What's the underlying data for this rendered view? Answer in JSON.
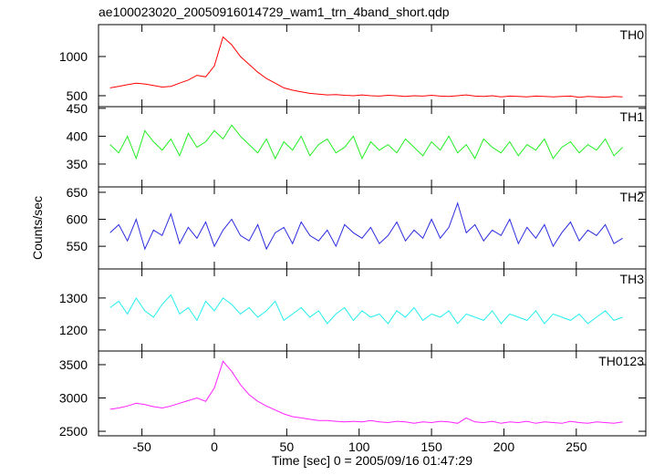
{
  "chart_data": [
    {
      "type": "line",
      "title": "ae100023020_20050916014729_wam1_trn_4band_short.qdp",
      "x": [
        -72,
        -66,
        -60,
        -54,
        -48,
        -42,
        -36,
        -30,
        -24,
        -18,
        -12,
        -6,
        0,
        6,
        12,
        18,
        24,
        30,
        36,
        42,
        48,
        54,
        60,
        66,
        72,
        78,
        84,
        90,
        96,
        102,
        108,
        114,
        120,
        126,
        132,
        138,
        144,
        150,
        156,
        162,
        168,
        174,
        180,
        186,
        192,
        198,
        204,
        210,
        216,
        222,
        228,
        234,
        240,
        246,
        252,
        258,
        264,
        270,
        276,
        282
      ],
      "xlim": [
        -80,
        298
      ],
      "xticks": [
        -50,
        0,
        50,
        100,
        150,
        200,
        250
      ],
      "ylim": [
        360,
        1407
      ],
      "yticks": [
        500,
        1000
      ],
      "series": [
        {
          "name": "TH0",
          "color": "#ff0000",
          "values": [
            600,
            620,
            640,
            660,
            650,
            630,
            610,
            620,
            660,
            700,
            760,
            740,
            880,
            1250,
            1150,
            1000,
            900,
            800,
            720,
            660,
            600,
            570,
            550,
            530,
            520,
            510,
            515,
            505,
            500,
            510,
            500,
            495,
            505,
            500,
            490,
            500,
            495,
            505,
            495,
            490,
            500,
            510,
            495,
            490,
            500,
            485,
            495,
            490,
            485,
            495,
            490,
            485,
            490,
            495,
            480,
            490,
            485,
            480,
            490,
            485
          ]
        }
      ]
    },
    {
      "type": "line",
      "x": [
        -72,
        -66,
        -60,
        -54,
        -48,
        -42,
        -36,
        -30,
        -24,
        -18,
        -12,
        -6,
        0,
        6,
        12,
        18,
        24,
        30,
        36,
        42,
        48,
        54,
        60,
        66,
        72,
        78,
        84,
        90,
        96,
        102,
        108,
        114,
        120,
        126,
        132,
        138,
        144,
        150,
        156,
        162,
        168,
        174,
        180,
        186,
        192,
        198,
        204,
        210,
        216,
        222,
        228,
        234,
        240,
        246,
        252,
        258,
        264,
        270,
        276,
        282
      ],
      "xlim": [
        -80,
        298
      ],
      "xticks": [
        -50,
        0,
        50,
        100,
        150,
        200,
        250
      ],
      "ylim": [
        309,
        453
      ],
      "yticks": [
        350,
        400,
        450
      ],
      "series": [
        {
          "name": "TH1",
          "color": "#22ee22",
          "values": [
            385,
            370,
            400,
            360,
            410,
            390,
            375,
            395,
            365,
            405,
            380,
            390,
            410,
            395,
            420,
            400,
            385,
            370,
            395,
            360,
            390,
            375,
            400,
            365,
            385,
            395,
            370,
            380,
            400,
            360,
            390,
            375,
            385,
            370,
            395,
            380,
            365,
            390,
            375,
            400,
            370,
            385,
            360,
            395,
            380,
            370,
            390,
            365,
            385,
            375,
            395,
            360,
            380,
            390,
            370,
            385,
            375,
            395,
            365,
            380
          ]
        }
      ]
    },
    {
      "type": "line",
      "ylabel": "Counts/sec",
      "x": [
        -72,
        -66,
        -60,
        -54,
        -48,
        -42,
        -36,
        -30,
        -24,
        -18,
        -12,
        -6,
        0,
        6,
        12,
        18,
        24,
        30,
        36,
        42,
        48,
        54,
        60,
        66,
        72,
        78,
        84,
        90,
        96,
        102,
        108,
        114,
        120,
        126,
        132,
        138,
        144,
        150,
        156,
        162,
        168,
        174,
        180,
        186,
        192,
        198,
        204,
        210,
        216,
        222,
        228,
        234,
        240,
        246,
        252,
        258,
        264,
        270,
        276,
        282
      ],
      "xlim": [
        -80,
        298
      ],
      "xticks": [
        -50,
        0,
        50,
        100,
        150,
        200,
        250
      ],
      "ylim": [
        508,
        660
      ],
      "yticks": [
        550,
        600,
        650
      ],
      "series": [
        {
          "name": "TH2",
          "color": "#2a2ae0",
          "values": [
            575,
            590,
            560,
            600,
            545,
            580,
            570,
            610,
            555,
            585,
            565,
            595,
            550,
            580,
            600,
            570,
            560,
            590,
            545,
            575,
            585,
            555,
            595,
            570,
            560,
            580,
            550,
            590,
            575,
            565,
            585,
            555,
            570,
            595,
            560,
            580,
            565,
            600,
            565,
            585,
            630,
            575,
            590,
            560,
            580,
            570,
            600,
            555,
            585,
            565,
            590,
            550,
            575,
            595,
            560,
            580,
            570,
            590,
            555,
            565
          ]
        }
      ]
    },
    {
      "type": "line",
      "x": [
        -72,
        -66,
        -60,
        -54,
        -48,
        -42,
        -36,
        -30,
        -24,
        -18,
        -12,
        -6,
        0,
        6,
        12,
        18,
        24,
        30,
        36,
        42,
        48,
        54,
        60,
        66,
        72,
        78,
        84,
        90,
        96,
        102,
        108,
        114,
        120,
        126,
        132,
        138,
        144,
        150,
        156,
        162,
        168,
        174,
        180,
        186,
        192,
        198,
        204,
        210,
        216,
        222,
        228,
        234,
        240,
        246,
        252,
        258,
        264,
        270,
        276,
        282
      ],
      "xlim": [
        -80,
        298
      ],
      "xticks": [
        -50,
        0,
        50,
        100,
        150,
        200,
        250
      ],
      "ylim": [
        1134,
        1391
      ],
      "yticks": [
        1200,
        1300
      ],
      "series": [
        {
          "name": "TH3",
          "color": "#22eeee",
          "values": [
            1270,
            1290,
            1250,
            1300,
            1260,
            1240,
            1280,
            1310,
            1250,
            1270,
            1230,
            1290,
            1260,
            1300,
            1280,
            1250,
            1270,
            1240,
            1260,
            1290,
            1230,
            1250,
            1270,
            1240,
            1260,
            1220,
            1250,
            1270,
            1230,
            1260,
            1240,
            1250,
            1220,
            1260,
            1240,
            1270,
            1230,
            1250,
            1240,
            1260,
            1220,
            1250,
            1240,
            1230,
            1260,
            1220,
            1250,
            1240,
            1230,
            1260,
            1220,
            1250,
            1240,
            1230,
            1250,
            1220,
            1240,
            1260,
            1230,
            1240
          ]
        }
      ]
    },
    {
      "type": "line",
      "xlabel": "Time [sec] 0 = 2005/09/16 01:47:29",
      "x": [
        -72,
        -66,
        -60,
        -54,
        -48,
        -42,
        -36,
        -30,
        -24,
        -18,
        -12,
        -6,
        0,
        6,
        12,
        18,
        24,
        30,
        36,
        42,
        48,
        54,
        60,
        66,
        72,
        78,
        84,
        90,
        96,
        102,
        108,
        114,
        120,
        126,
        132,
        138,
        144,
        150,
        156,
        162,
        168,
        174,
        180,
        186,
        192,
        198,
        204,
        210,
        216,
        222,
        228,
        234,
        240,
        246,
        252,
        258,
        264,
        270,
        276,
        282
      ],
      "xlim": [
        -80,
        298
      ],
      "xticks": [
        -50,
        0,
        50,
        100,
        150,
        200,
        250
      ],
      "ylim": [
        2432,
        3705
      ],
      "yticks": [
        2500,
        3000,
        3500
      ],
      "series": [
        {
          "name": "TH0123",
          "color": "#ff22ff",
          "values": [
            2830,
            2850,
            2880,
            2920,
            2900,
            2870,
            2850,
            2880,
            2920,
            2960,
            3000,
            2950,
            3150,
            3550,
            3400,
            3200,
            3050,
            2950,
            2880,
            2820,
            2760,
            2720,
            2700,
            2680,
            2660,
            2660,
            2650,
            2640,
            2650,
            2640,
            2660,
            2640,
            2630,
            2650,
            2640,
            2620,
            2640,
            2630,
            2650,
            2640,
            2620,
            2700,
            2640,
            2630,
            2650,
            2620,
            2640,
            2630,
            2650,
            2620,
            2640,
            2630,
            2620,
            2650,
            2630,
            2620,
            2640,
            2630,
            2620,
            2640
          ]
        }
      ]
    }
  ]
}
